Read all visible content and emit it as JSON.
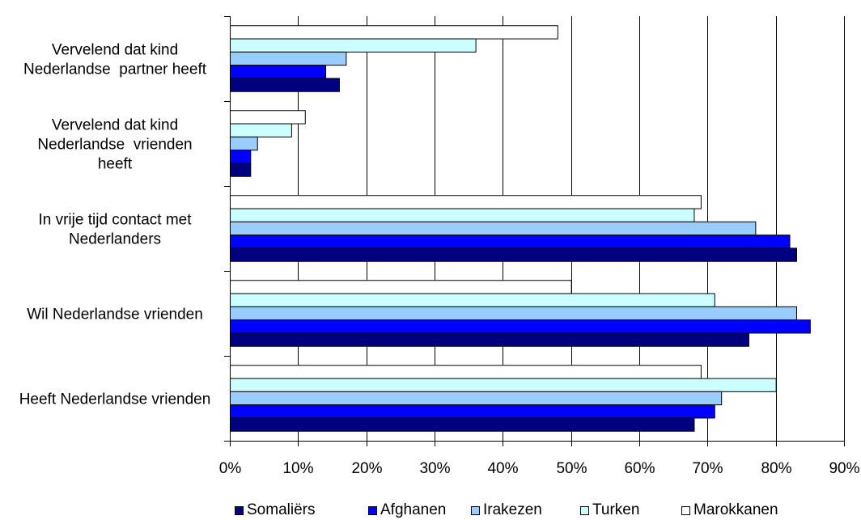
{
  "chart_data": {
    "type": "bar",
    "orientation": "horizontal",
    "categories": [
      [
        "Vervelend dat kind",
        "Nederlandse  partner heeft"
      ],
      [
        "Vervelend dat kind",
        "Nederlandse  vrienden",
        "heeft"
      ],
      [
        "In vrije tijd contact met",
        "Nederlanders"
      ],
      [
        "Wil Nederlandse vrienden"
      ],
      [
        "Heeft Nederlandse vrienden"
      ]
    ],
    "series": [
      {
        "name": "Marokkanen",
        "color": "#ffffff",
        "values": [
          48,
          11,
          69,
          50,
          69
        ]
      },
      {
        "name": "Turken",
        "color": "#ccffff",
        "values": [
          36,
          9,
          68,
          71,
          80
        ]
      },
      {
        "name": "Irakezen",
        "color": "#99ccff",
        "values": [
          17,
          4,
          77,
          83,
          72
        ]
      },
      {
        "name": "Afghanen",
        "color": "#0000ff",
        "values": [
          14,
          3,
          82,
          85,
          71
        ]
      },
      {
        "name": "Somaliërs",
        "color": "#000080",
        "values": [
          16,
          3,
          83,
          76,
          68
        ]
      }
    ],
    "xlim": [
      0,
      90
    ],
    "xticks": [
      "0%",
      "10%",
      "20%",
      "30%",
      "40%",
      "50%",
      "60%",
      "70%",
      "80%",
      "90%"
    ],
    "grid": true,
    "legend_position": "bottom",
    "legend_order": [
      "Somaliërs",
      "Afghanen",
      "Irakezen",
      "Turken",
      "Marokkanen"
    ]
  }
}
